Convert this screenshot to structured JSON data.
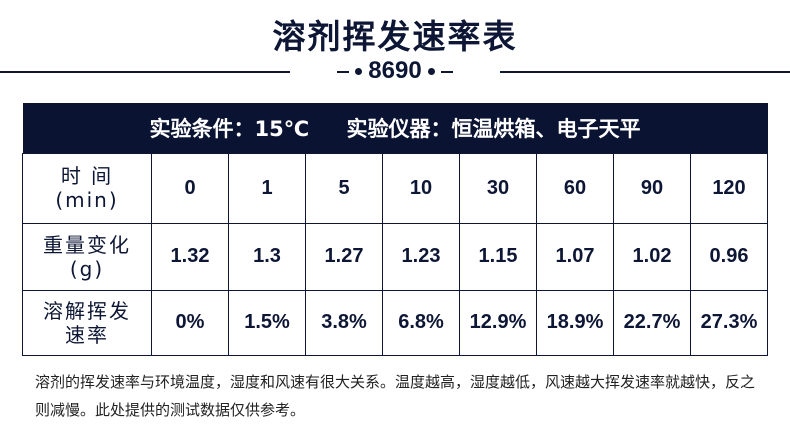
{
  "title": "溶剂挥发速率表",
  "code": "8690",
  "header": {
    "condition": "实验条件：15℃",
    "instrument": "实验仪器：恒温烘箱、电子天平"
  },
  "rows": [
    {
      "label": "时 间\n(min)",
      "values": [
        "0",
        "1",
        "5",
        "10",
        "30",
        "60",
        "90",
        "120"
      ]
    },
    {
      "label": "重量变化\n(g)",
      "values": [
        "1.32",
        "1.3",
        "1.27",
        "1.23",
        "1.15",
        "1.07",
        "1.02",
        "0.96"
      ]
    },
    {
      "label": "溶解挥发\n速率",
      "values": [
        "0%",
        "1.5%",
        "3.8%",
        "6.8%",
        "12.9%",
        "18.9%",
        "22.7%",
        "27.3%"
      ]
    }
  ],
  "note": "溶剂的挥发速率与环境温度，湿度和风速有很大关系。温度越高，湿度越低，风速越大挥发速率就越快，反之则减慢。此处提供的测试数据仅供参考。",
  "colors": {
    "navy": "#0b1333"
  }
}
